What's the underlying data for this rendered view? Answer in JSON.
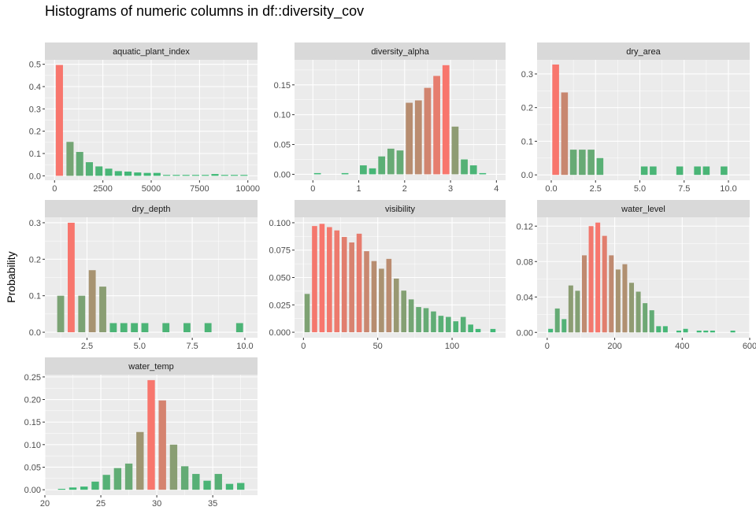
{
  "title": "Histograms of numeric columns in df::diversity_cov",
  "ylabel": "Probability",
  "colors": {
    "low": "#3cba77",
    "high": "#f8766d",
    "panel_bg": "#ebebeb",
    "strip_bg": "#d9d9d9",
    "grid": "#ffffff"
  },
  "chart_data": [
    {
      "type": "bar",
      "name": "aquatic_plant_index",
      "xlim": [
        -500,
        10500
      ],
      "ylim": [
        -0.02,
        0.52
      ],
      "xticks": [
        0,
        2500,
        5000,
        7500,
        10000
      ],
      "xtick_labels": [
        "0",
        "2500",
        "5000",
        "7500",
        "10000"
      ],
      "yticks": [
        0,
        0.1,
        0.2,
        0.3,
        0.4,
        0.5
      ],
      "ytick_labels": [
        "0.0",
        "0.1",
        "0.2",
        "0.3",
        "0.4",
        "0.5"
      ],
      "bin_width": 370,
      "x": [
        250,
        800,
        1300,
        1800,
        2300,
        2800,
        3300,
        3800,
        4300,
        4800,
        5300,
        5800,
        6300,
        6800,
        7300,
        7800,
        8300,
        8800,
        9300,
        9800
      ],
      "values": [
        0.497,
        0.152,
        0.107,
        0.061,
        0.042,
        0.032,
        0.021,
        0.019,
        0.015,
        0.013,
        0.013,
        0.004,
        0.004,
        0.004,
        0.004,
        0.004,
        0.008,
        0.004,
        0.004,
        0.004
      ]
    },
    {
      "type": "bar",
      "name": "diversity_alpha",
      "xlim": [
        -0.4,
        4.2
      ],
      "ylim": [
        -0.01,
        0.192
      ],
      "xticks": [
        0,
        1,
        2,
        3,
        4
      ],
      "xtick_labels": [
        "0",
        "1",
        "2",
        "3",
        "4"
      ],
      "yticks": [
        0,
        0.05,
        0.1,
        0.15
      ],
      "ytick_labels": [
        "0.00",
        "0.05",
        "0.10",
        "0.15"
      ],
      "bin_width": 0.15,
      "x": [
        0.1,
        0.3,
        0.5,
        0.7,
        0.9,
        1.1,
        1.3,
        1.5,
        1.7,
        1.9,
        2.1,
        2.3,
        2.5,
        2.7,
        2.9,
        3.1,
        3.3,
        3.5,
        3.7
      ],
      "values": [
        0.002,
        0,
        0,
        0.002,
        0,
        0.015,
        0.01,
        0.03,
        0.043,
        0.04,
        0.12,
        0.124,
        0.145,
        0.165,
        0.183,
        0.08,
        0.025,
        0.015,
        0.002
      ]
    },
    {
      "type": "bar",
      "name": "dry_area",
      "xlim": [
        -0.8,
        11.2
      ],
      "ylim": [
        -0.016,
        0.342
      ],
      "xticks": [
        0,
        2.5,
        5,
        7.5,
        10
      ],
      "xtick_labels": [
        "0.0",
        "2.5",
        "5.0",
        "7.5",
        "10.0"
      ],
      "yticks": [
        0,
        0.1,
        0.2,
        0.3
      ],
      "ytick_labels": [
        "0.0",
        "0.1",
        "0.2",
        "0.3"
      ],
      "bin_width": 0.38,
      "x": [
        0.25,
        0.75,
        1.25,
        1.75,
        2.25,
        2.75,
        3.25,
        3.75,
        4.25,
        4.75,
        5.25,
        5.75,
        6.25,
        6.75,
        7.25,
        7.75,
        8.25,
        8.75,
        9.25,
        9.75
      ],
      "values": [
        0.328,
        0.245,
        0.075,
        0.075,
        0.075,
        0.05,
        0,
        0,
        0,
        0,
        0.025,
        0.025,
        0,
        0,
        0.025,
        0,
        0.025,
        0.025,
        0,
        0.025
      ]
    },
    {
      "type": "bar",
      "name": "dry_depth",
      "xlim": [
        0.5,
        10.6
      ],
      "ylim": [
        -0.015,
        0.315
      ],
      "xticks": [
        2.5,
        5,
        7.5,
        10
      ],
      "xtick_labels": [
        "2.5",
        "5.0",
        "7.5",
        "10.0"
      ],
      "yticks": [
        0,
        0.1,
        0.2,
        0.3
      ],
      "ytick_labels": [
        "0.0",
        "0.1",
        "0.2",
        "0.3"
      ],
      "bin_width": 0.33,
      "x": [
        1.25,
        1.75,
        2.25,
        2.75,
        3.25,
        3.75,
        4.25,
        4.75,
        5.25,
        5.75,
        6.25,
        6.75,
        7.25,
        7.75,
        8.25,
        8.75,
        9.25,
        9.75
      ],
      "values": [
        0.1,
        0.3,
        0.1,
        0.17,
        0.125,
        0.025,
        0.025,
        0.025,
        0.025,
        0,
        0.025,
        0,
        0.025,
        0,
        0.025,
        0,
        0,
        0.025
      ]
    },
    {
      "type": "bar",
      "name": "visibility",
      "xlim": [
        -6,
        136
      ],
      "ylim": [
        -0.005,
        0.105
      ],
      "xticks": [
        0,
        50,
        100
      ],
      "xtick_labels": [
        "0",
        "50",
        "100"
      ],
      "yticks": [
        0,
        0.025,
        0.05,
        0.075,
        0.1
      ],
      "ytick_labels": [
        "0.000",
        "0.025",
        "0.050",
        "0.075",
        "0.100"
      ],
      "bin_width": 3.5,
      "x": [
        2.5,
        7.5,
        12.5,
        17.5,
        22.5,
        27.5,
        32.5,
        37.5,
        42.5,
        47.5,
        52.5,
        57.5,
        62.5,
        67.5,
        72.5,
        77.5,
        82.5,
        87.5,
        92.5,
        97.5,
        102.5,
        107.5,
        112.5,
        117.5,
        122.5,
        127.5
      ],
      "values": [
        0.035,
        0.097,
        0.099,
        0.096,
        0.093,
        0.087,
        0.082,
        0.09,
        0.074,
        0.065,
        0.058,
        0.067,
        0.049,
        0.038,
        0.03,
        0.023,
        0.022,
        0.019,
        0.015,
        0.014,
        0.01,
        0.014,
        0.007,
        0.003,
        0,
        0.003
      ]
    },
    {
      "type": "bar",
      "name": "water_level",
      "xlim": [
        -30,
        600
      ],
      "ylim": [
        -0.006,
        0.13
      ],
      "xticks": [
        0,
        200,
        400,
        600
      ],
      "xtick_labels": [
        "0",
        "200",
        "400",
        "600"
      ],
      "yticks": [
        0,
        0.04,
        0.08,
        0.12
      ],
      "ytick_labels": [
        "0.00",
        "0.04",
        "0.08",
        "0.12"
      ],
      "bin_width": 14,
      "x": [
        10,
        30,
        50,
        70,
        90,
        110,
        130,
        150,
        170,
        190,
        210,
        230,
        250,
        270,
        290,
        310,
        330,
        350,
        370,
        390,
        410,
        430,
        450,
        470,
        490,
        510,
        530,
        550
      ],
      "values": [
        0.004,
        0.027,
        0.015,
        0.053,
        0.047,
        0.087,
        0.12,
        0.124,
        0.109,
        0.087,
        0.071,
        0.077,
        0.056,
        0.046,
        0.033,
        0.025,
        0.007,
        0.007,
        0,
        0.002,
        0.004,
        0,
        0.002,
        0.002,
        0.002,
        0,
        0,
        0.002
      ]
    },
    {
      "type": "bar",
      "name": "water_temp",
      "xlim": [
        20,
        39
      ],
      "ylim": [
        -0.012,
        0.255
      ],
      "xticks": [
        20,
        25,
        30,
        35
      ],
      "xtick_labels": [
        "20",
        "25",
        "30",
        "35"
      ],
      "yticks": [
        0,
        0.05,
        0.1,
        0.15,
        0.2,
        0.25
      ],
      "ytick_labels": [
        "0.00",
        "0.05",
        "0.10",
        "0.15",
        "0.20",
        "0.25"
      ],
      "bin_width": 0.66,
      "x": [
        21.5,
        22.5,
        23.5,
        24.5,
        25.5,
        26.5,
        27.5,
        28.5,
        29.5,
        30.5,
        31.5,
        32.5,
        33.5,
        34.5,
        35.5,
        36.5,
        37.5
      ],
      "values": [
        0.002,
        0.005,
        0.007,
        0.018,
        0.033,
        0.048,
        0.058,
        0.128,
        0.243,
        0.198,
        0.1,
        0.052,
        0.035,
        0.02,
        0.035,
        0.013,
        0.015
      ]
    }
  ]
}
